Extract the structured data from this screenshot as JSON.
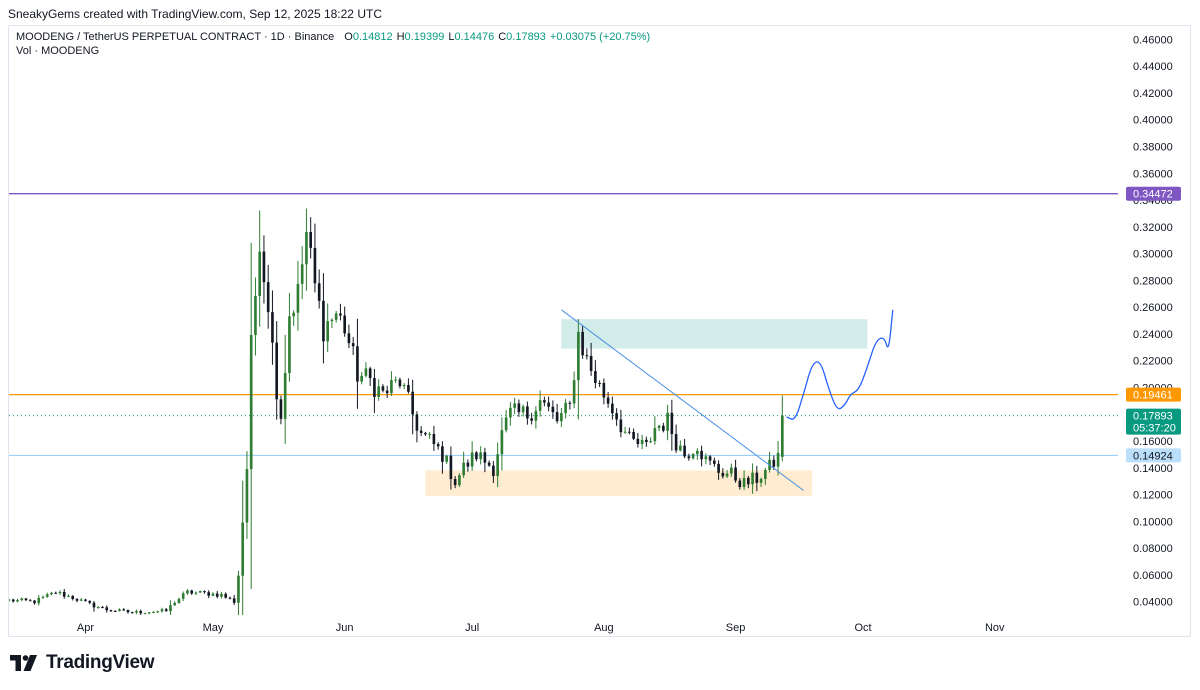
{
  "header": {
    "credit": "SneakyGems created with TradingView.com, Sep 12, 2025 18:22 UTC"
  },
  "legend": {
    "symbol": "MOODENG / TetherUS PERPETUAL CONTRACT · 1D · Binance",
    "o_label": "O",
    "o_value": "0.14812",
    "h_label": "H",
    "h_value": "0.19399",
    "l_label": "L",
    "l_value": "0.14476",
    "c_label": "C",
    "c_value": "0.17893",
    "change": "+0.03075 (+20.75%)",
    "volume": "Vol · MOODENG"
  },
  "footer": {
    "brand": "TradingView"
  },
  "colors": {
    "up": "#089981",
    "candle_up": "#2e7d32",
    "candle_down": "#131722",
    "resistance": "#7e57c2",
    "orange": "#ff9800",
    "support": "#90caf9",
    "trend": "#4a90e2",
    "green_zone": "#b2dfdb",
    "orange_zone": "#ffe0b2"
  },
  "chart_data": {
    "type": "candlestick",
    "symbol": "MOODENG / TetherUS PERPETUAL CONTRACT",
    "interval": "1D",
    "exchange": "Binance",
    "ylim": [
      0.03,
      0.47
    ],
    "yticks": [
      "0.04000",
      "0.06000",
      "0.08000",
      "0.10000",
      "0.12000",
      "0.14000",
      "0.16000",
      "0.18000",
      "0.20000",
      "0.22000",
      "0.24000",
      "0.26000",
      "0.28000",
      "0.30000",
      "0.32000",
      "0.34000",
      "0.36000",
      "0.38000",
      "0.40000",
      "0.42000",
      "0.44000",
      "0.46000"
    ],
    "xticks": [
      {
        "label": "Apr",
        "date": "2025-04-01"
      },
      {
        "label": "May",
        "date": "2025-05-01"
      },
      {
        "label": "Jun",
        "date": "2025-06-01"
      },
      {
        "label": "Jul",
        "date": "2025-07-01"
      },
      {
        "label": "Aug",
        "date": "2025-08-01"
      },
      {
        "label": "Sep",
        "date": "2025-09-01"
      },
      {
        "label": "Oct",
        "date": "2025-10-01"
      },
      {
        "label": "Nov",
        "date": "2025-11-01"
      }
    ],
    "date_range": [
      "2025-03-14",
      "2025-11-30"
    ],
    "anchors": [
      {
        "date": "2025-03-14",
        "close": 0.041
      },
      {
        "date": "2025-03-20",
        "close": 0.04
      },
      {
        "date": "2025-03-25",
        "close": 0.047
      },
      {
        "date": "2025-03-29",
        "close": 0.043
      },
      {
        "date": "2025-04-02",
        "close": 0.038
      },
      {
        "date": "2025-04-06",
        "close": 0.034
      },
      {
        "date": "2025-04-12",
        "close": 0.032
      },
      {
        "date": "2025-04-20",
        "close": 0.033
      },
      {
        "date": "2025-04-22",
        "close": 0.04
      },
      {
        "date": "2025-04-25",
        "close": 0.047
      },
      {
        "date": "2025-04-30",
        "close": 0.046
      },
      {
        "date": "2025-05-03",
        "close": 0.045
      },
      {
        "date": "2025-05-06",
        "close": 0.04
      },
      {
        "date": "2025-05-07",
        "close": 0.06
      },
      {
        "date": "2025-05-08",
        "close": 0.1
      },
      {
        "date": "2025-05-09",
        "close": 0.14
      },
      {
        "date": "2025-05-10",
        "close": 0.23
      },
      {
        "date": "2025-05-11",
        "close": 0.27
      },
      {
        "date": "2025-05-12",
        "close": 0.315
      },
      {
        "date": "2025-05-13",
        "close": 0.285
      },
      {
        "date": "2025-05-14",
        "close": 0.265
      },
      {
        "date": "2025-05-15",
        "close": 0.23
      },
      {
        "date": "2025-05-16",
        "close": 0.2
      },
      {
        "date": "2025-05-17",
        "close": 0.18
      },
      {
        "date": "2025-05-18",
        "close": 0.215
      },
      {
        "date": "2025-05-19",
        "close": 0.255
      },
      {
        "date": "2025-05-21",
        "close": 0.27
      },
      {
        "date": "2025-05-23",
        "close": 0.315
      },
      {
        "date": "2025-05-25",
        "close": 0.275
      },
      {
        "date": "2025-05-27",
        "close": 0.245
      },
      {
        "date": "2025-05-30",
        "close": 0.255
      },
      {
        "date": "2025-06-01",
        "close": 0.245
      },
      {
        "date": "2025-06-04",
        "close": 0.21
      },
      {
        "date": "2025-06-07",
        "close": 0.205
      },
      {
        "date": "2025-06-10",
        "close": 0.195
      },
      {
        "date": "2025-06-14",
        "close": 0.205
      },
      {
        "date": "2025-06-17",
        "close": 0.18
      },
      {
        "date": "2025-06-19",
        "close": 0.165
      },
      {
        "date": "2025-06-21",
        "close": 0.16
      },
      {
        "date": "2025-06-24",
        "close": 0.15
      },
      {
        "date": "2025-06-27",
        "close": 0.13
      },
      {
        "date": "2025-06-29",
        "close": 0.14
      },
      {
        "date": "2025-07-02",
        "close": 0.15
      },
      {
        "date": "2025-07-06",
        "close": 0.14
      },
      {
        "date": "2025-07-08",
        "close": 0.165
      },
      {
        "date": "2025-07-10",
        "close": 0.18
      },
      {
        "date": "2025-07-14",
        "close": 0.18
      },
      {
        "date": "2025-07-17",
        "close": 0.19
      },
      {
        "date": "2025-07-21",
        "close": 0.175
      },
      {
        "date": "2025-07-24",
        "close": 0.185
      },
      {
        "date": "2025-07-26",
        "close": 0.24
      },
      {
        "date": "2025-07-28",
        "close": 0.22
      },
      {
        "date": "2025-07-31",
        "close": 0.2
      },
      {
        "date": "2025-08-03",
        "close": 0.185
      },
      {
        "date": "2025-08-07",
        "close": 0.16
      },
      {
        "date": "2025-08-11",
        "close": 0.155
      },
      {
        "date": "2025-08-13",
        "close": 0.17
      },
      {
        "date": "2025-08-16",
        "close": 0.175
      },
      {
        "date": "2025-08-18",
        "close": 0.16
      },
      {
        "date": "2025-08-20",
        "close": 0.15
      },
      {
        "date": "2025-08-23",
        "close": 0.158
      },
      {
        "date": "2025-08-25",
        "close": 0.145
      },
      {
        "date": "2025-08-28",
        "close": 0.138
      },
      {
        "date": "2025-08-31",
        "close": 0.135
      },
      {
        "date": "2025-09-03",
        "close": 0.128
      },
      {
        "date": "2025-09-06",
        "close": 0.132
      },
      {
        "date": "2025-09-09",
        "close": 0.14
      },
      {
        "date": "2025-09-11",
        "close": 0.148
      },
      {
        "date": "2025-09-12",
        "close": 0.17893
      }
    ],
    "last_candle": {
      "date": "2025-09-12",
      "open": 0.14812,
      "high": 0.19399,
      "low": 0.14476,
      "close": 0.17893
    },
    "price_tags": [
      {
        "id": "resistance",
        "value": 0.34472,
        "label": "0.34472",
        "color": "#7e57c2"
      },
      {
        "id": "orange",
        "value": 0.19461,
        "label": "0.19461",
        "color": "#ff9800"
      },
      {
        "id": "last",
        "value": 0.17893,
        "label": "0.17893",
        "countdown": "05:37:20",
        "color": "#089981"
      },
      {
        "id": "support",
        "value": 0.14924,
        "label": "0.14924",
        "color": "#90caf9"
      }
    ],
    "zones": [
      {
        "name": "supply",
        "from": "2025-07-22",
        "to": "2025-10-02",
        "low": 0.229,
        "high": 0.251,
        "color": "#b2dfdb"
      },
      {
        "name": "demand",
        "from": "2025-06-20",
        "to": "2025-09-19",
        "low": 0.119,
        "high": 0.138,
        "color": "#ffe0b2"
      }
    ],
    "trendline": {
      "from": {
        "date": "2025-07-22",
        "price": 0.258
      },
      "to": {
        "date": "2025-09-17",
        "price": 0.123
      }
    },
    "projection_path": [
      {
        "date": "2025-09-13",
        "price": 0.178
      },
      {
        "date": "2025-09-15",
        "price": 0.175
      },
      {
        "date": "2025-09-17",
        "price": 0.195
      },
      {
        "date": "2025-09-19",
        "price": 0.218
      },
      {
        "date": "2025-09-21",
        "price": 0.22
      },
      {
        "date": "2025-09-23",
        "price": 0.198
      },
      {
        "date": "2025-09-25",
        "price": 0.182
      },
      {
        "date": "2025-09-27",
        "price": 0.188
      },
      {
        "date": "2025-09-28",
        "price": 0.195
      },
      {
        "date": "2025-09-30",
        "price": 0.198
      },
      {
        "date": "2025-10-02",
        "price": 0.215
      },
      {
        "date": "2025-10-04",
        "price": 0.235
      },
      {
        "date": "2025-10-06",
        "price": 0.238
      },
      {
        "date": "2025-10-07",
        "price": 0.226
      },
      {
        "date": "2025-10-08",
        "price": 0.258
      }
    ],
    "grid": false
  }
}
